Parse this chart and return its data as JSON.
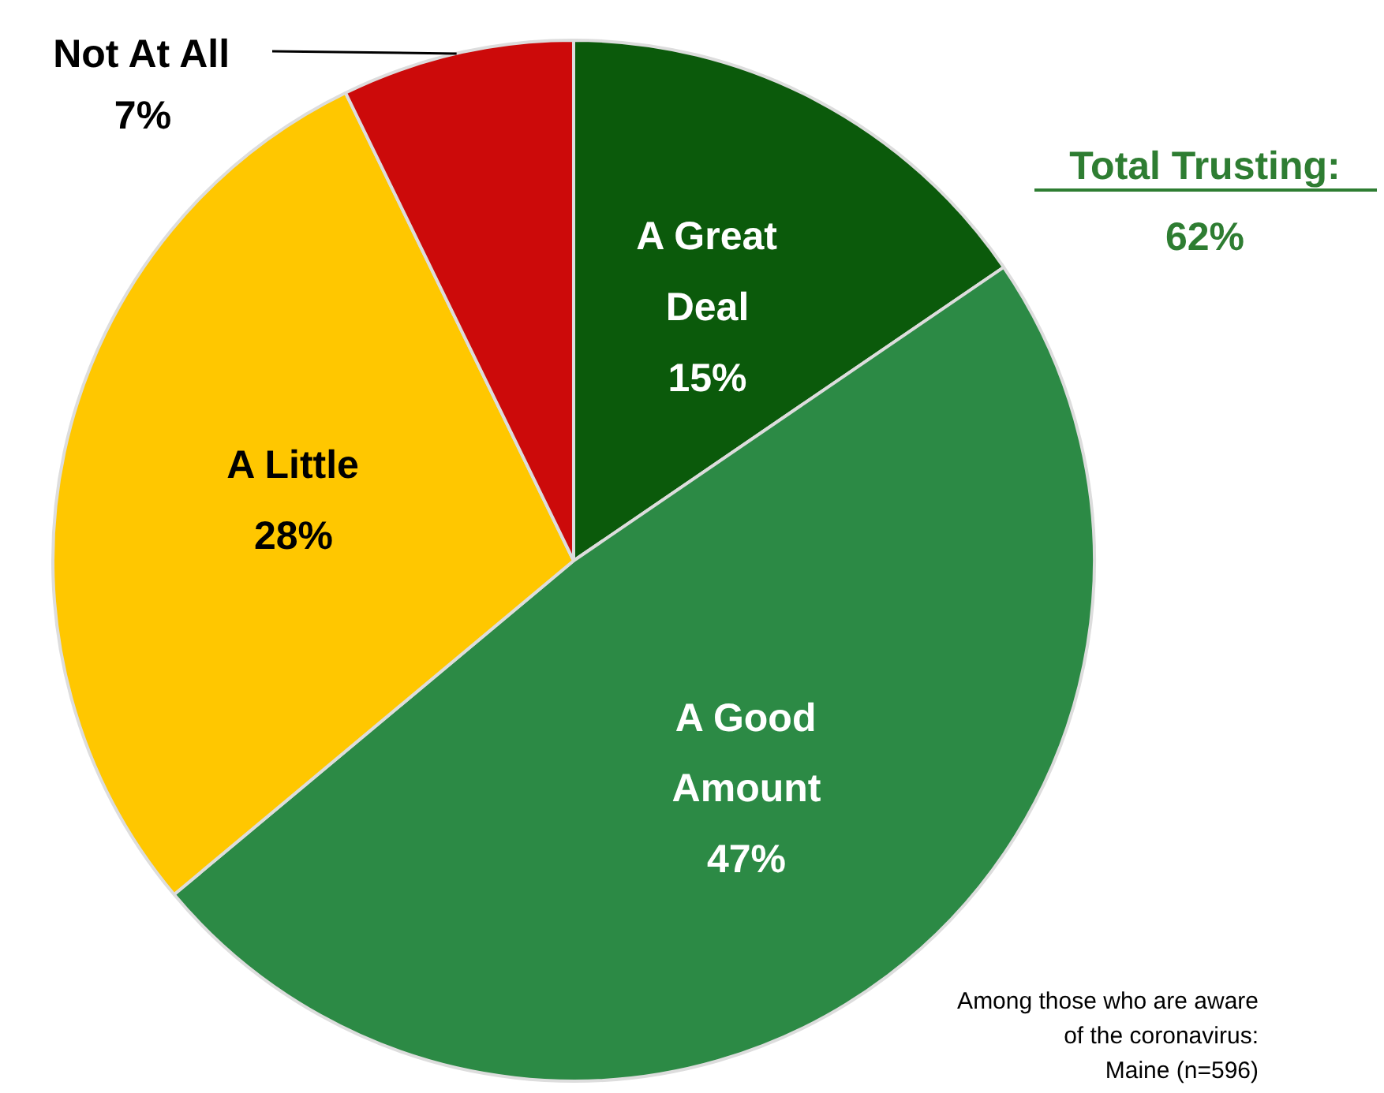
{
  "chart_data": {
    "type": "pie",
    "categories": [
      "A Great\nDeal",
      "A Good\nAmount",
      "A Little",
      "Not At All"
    ],
    "values": [
      15,
      47,
      28,
      7
    ],
    "colors": [
      "#0b5a0b",
      "#2c8a45",
      "#ffc700",
      "#cc0a0a"
    ],
    "value_labels": [
      "15%",
      "47%",
      "28%",
      "7%"
    ],
    "annotations": [
      "Total Trusting:",
      "62%",
      "Among those who are aware\nof the coronavirus:\nMaine (n=596)"
    ]
  }
}
